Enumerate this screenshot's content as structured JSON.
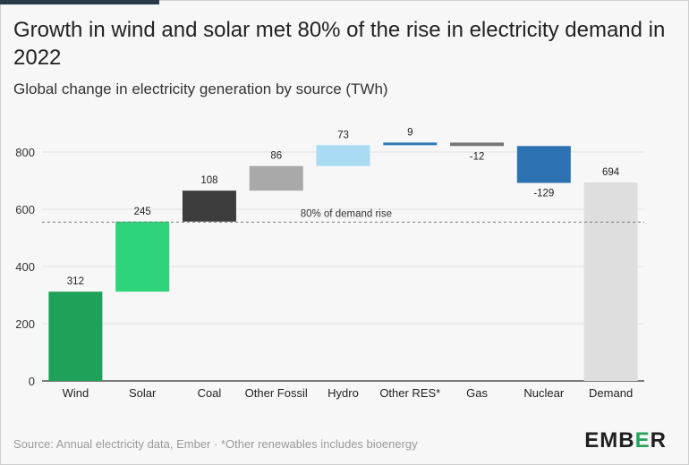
{
  "title": "Growth in wind and solar met 80% of the rise in electricity demand in 2022",
  "subtitle": "Global change in electricity generation by source (TWh)",
  "footer": {
    "source": "Source: Annual electricity data, Ember · *Other renewables includes bioenergy"
  },
  "logo": {
    "pre": "EMB",
    "accent": "E",
    "post": "R"
  },
  "chart_data": {
    "type": "bar",
    "subtype": "waterfall",
    "title": "Growth in wind and solar met 80% of the rise in electricity demand in 2022",
    "subtitle": "Global change in electricity generation by source (TWh)",
    "xlabel": "",
    "ylabel": "",
    "ylim": [
      0,
      850
    ],
    "yticks": [
      0,
      200,
      400,
      600,
      800
    ],
    "grid": true,
    "categories": [
      "Wind",
      "Solar",
      "Coal",
      "Other Fossil",
      "Hydro",
      "Other RES*",
      "Gas",
      "Nuclear",
      "Demand"
    ],
    "values": [
      312,
      245,
      108,
      86,
      73,
      9,
      -12,
      -129,
      694
    ],
    "value_labels": [
      "312",
      "245",
      "108",
      "86",
      "73",
      "9",
      "-12",
      "-129",
      "694"
    ],
    "total_index": 8,
    "colors": [
      "#1fa15a",
      "#2fd47a",
      "#3c3c3c",
      "#a9a9a9",
      "#a9dcf3",
      "#2f7ab7",
      "#757575",
      "#2d73b3",
      "#dedede"
    ],
    "reference_line": {
      "value": 555,
      "label": "80% of demand rise"
    }
  }
}
